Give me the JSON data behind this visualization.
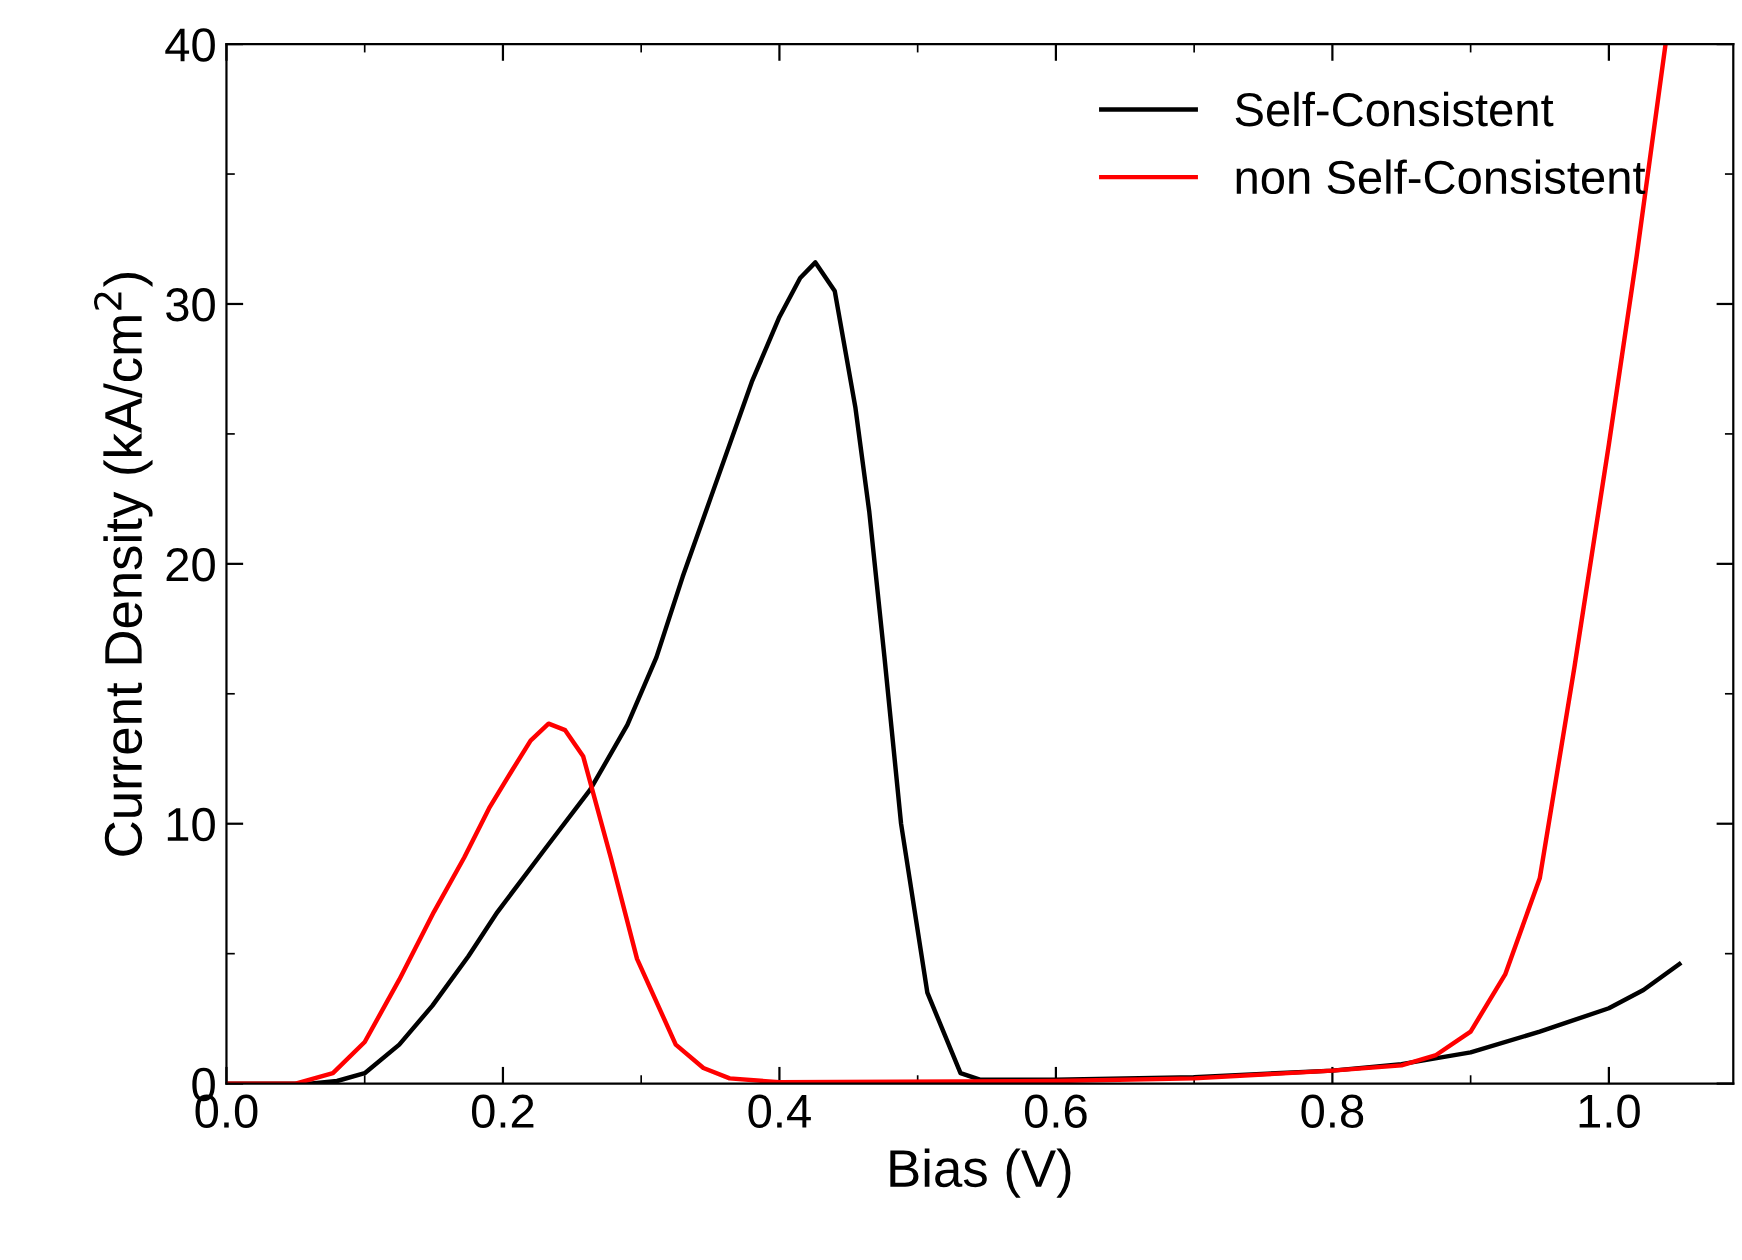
{
  "chart_data": {
    "type": "line",
    "xlabel": "Bias (V)",
    "ylabel": "Current Density (kA/cm$^{2}$)",
    "xlim": [
      0,
      1.09
    ],
    "ylim": [
      0,
      40
    ],
    "xticks": [
      {
        "value": 0,
        "label": "0.0"
      },
      0.2,
      0.4,
      0.6,
      0.8,
      {
        "value": 1,
        "label": "1.0"
      }
    ],
    "yticks": [
      0,
      10,
      20,
      30,
      40
    ],
    "grid": false,
    "legend": "top right",
    "marker": "none",
    "line_style": "solid",
    "series": [
      {
        "name": "Self-Consistent",
        "color": "#000000",
        "x": [
          0,
          0.06,
          0.08,
          0.1,
          0.125,
          0.149,
          0.175,
          0.196,
          0.23,
          0.263,
          0.29,
          0.311,
          0.33,
          0.35,
          0.38,
          0.4,
          0.415,
          0.426,
          0.44,
          0.455,
          0.465,
          0.476,
          0.488,
          0.507,
          0.531,
          0.545,
          0.6,
          0.7,
          0.8,
          0.85,
          0.9,
          0.95,
          1.0,
          1.025,
          1.051
        ],
        "values": [
          0,
          0,
          0.1,
          0.4,
          1.5,
          3.0,
          4.9,
          6.6,
          9.0,
          11.3,
          13.8,
          16.4,
          19.5,
          22.5,
          27.0,
          29.5,
          31.0,
          31.6,
          30.5,
          26.0,
          22.0,
          16.4,
          10.0,
          3.5,
          0.4,
          0.15,
          0.15,
          0.25,
          0.5,
          0.75,
          1.2,
          2.0,
          2.9,
          3.6,
          4.6
        ]
      },
      {
        "name": "non Self-Consistent",
        "color": "#ff0000",
        "x": [
          0,
          0.05,
          0.077,
          0.1,
          0.125,
          0.15,
          0.172,
          0.19,
          0.206,
          0.22,
          0.233,
          0.245,
          0.258,
          0.278,
          0.297,
          0.325,
          0.345,
          0.364,
          0.4,
          0.6,
          0.7,
          0.8,
          0.85,
          0.875,
          0.9,
          0.925,
          0.95,
          0.975,
          1.0,
          1.02,
          1.041
        ],
        "values": [
          0,
          0,
          0.4,
          1.6,
          4.0,
          6.6,
          8.7,
          10.6,
          12.0,
          13.2,
          13.85,
          13.6,
          12.6,
          8.7,
          4.8,
          1.5,
          0.6,
          0.2,
          0.05,
          0.1,
          0.2,
          0.5,
          0.7,
          1.1,
          2.0,
          4.2,
          7.9,
          16.0,
          24.6,
          31.8,
          40.0
        ]
      }
    ]
  }
}
